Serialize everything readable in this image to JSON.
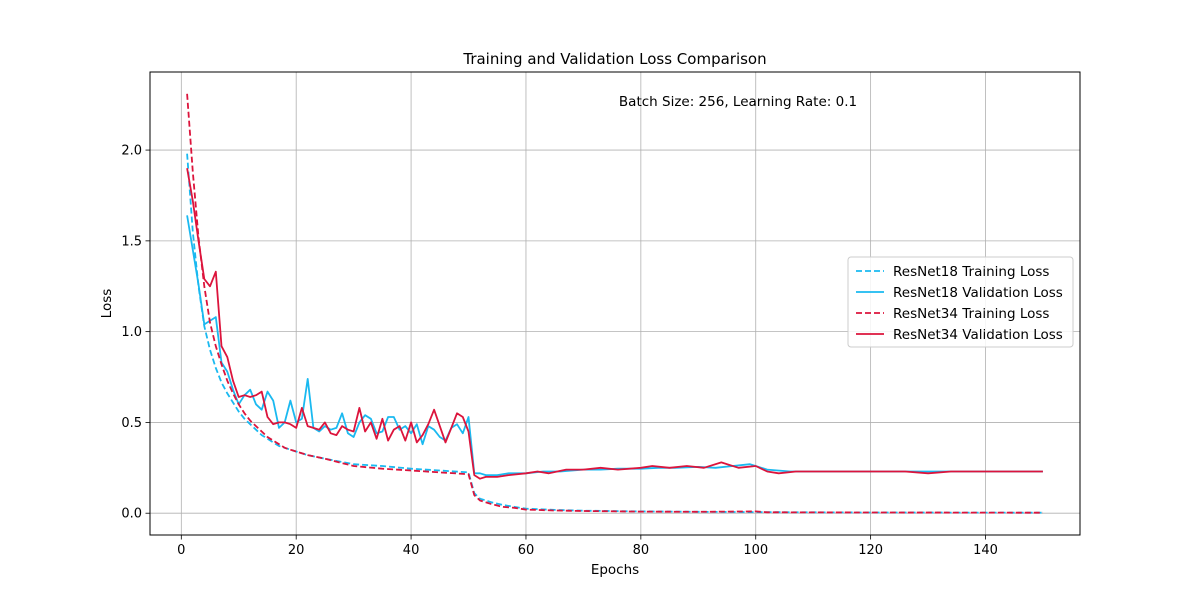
{
  "chart_data": {
    "type": "line",
    "title": "Training and Validation Loss Comparison",
    "annotation": "Batch Size: 256, Learning Rate: 0.1",
    "xlabel": "Epochs",
    "ylabel": "Loss",
    "xlim": [
      -5.45,
      156.45
    ],
    "ylim": [
      -0.12,
      2.43
    ],
    "xticks": [
      0,
      20,
      40,
      60,
      80,
      100,
      120,
      140
    ],
    "yticks": [
      0.0,
      0.5,
      1.0,
      1.5,
      2.0
    ],
    "ytick_labels": [
      "0.0",
      "0.5",
      "1.0",
      "1.5",
      "2.0"
    ],
    "grid": true,
    "legend_position": "center-right",
    "series": [
      {
        "name": "ResNet18 Training Loss",
        "color": "#1AB9F0",
        "dash": true,
        "points": [
          [
            1,
            1.98
          ],
          [
            2,
            1.55
          ],
          [
            3,
            1.25
          ],
          [
            4,
            1.03
          ],
          [
            5,
            0.9
          ],
          [
            6,
            0.8
          ],
          [
            7,
            0.72
          ],
          [
            8,
            0.66
          ],
          [
            9,
            0.61
          ],
          [
            10,
            0.56
          ],
          [
            11,
            0.52
          ],
          [
            12,
            0.49
          ],
          [
            13,
            0.46
          ],
          [
            14,
            0.43
          ],
          [
            15,
            0.41
          ],
          [
            16,
            0.39
          ],
          [
            17,
            0.37
          ],
          [
            18,
            0.36
          ],
          [
            19,
            0.35
          ],
          [
            20,
            0.34
          ],
          [
            22,
            0.32
          ],
          [
            25,
            0.3
          ],
          [
            30,
            0.27
          ],
          [
            35,
            0.26
          ],
          [
            40,
            0.245
          ],
          [
            45,
            0.235
          ],
          [
            50,
            0.225
          ],
          [
            51,
            0.11
          ],
          [
            52,
            0.08
          ],
          [
            54,
            0.06
          ],
          [
            56,
            0.045
          ],
          [
            58,
            0.035
          ],
          [
            60,
            0.025
          ],
          [
            65,
            0.018
          ],
          [
            70,
            0.014
          ],
          [
            80,
            0.01
          ],
          [
            90,
            0.008
          ],
          [
            100,
            0.006
          ],
          [
            120,
            0.004
          ],
          [
            150,
            0.003
          ]
        ]
      },
      {
        "name": "ResNet18 Validation Loss",
        "color": "#1AB9F0",
        "dash": false,
        "points": [
          [
            1,
            1.64
          ],
          [
            2,
            1.45
          ],
          [
            3,
            1.26
          ],
          [
            4,
            1.04
          ],
          [
            5,
            1.06
          ],
          [
            6,
            1.08
          ],
          [
            7,
            0.83
          ],
          [
            8,
            0.78
          ],
          [
            9,
            0.68
          ],
          [
            10,
            0.6
          ],
          [
            11,
            0.65
          ],
          [
            12,
            0.68
          ],
          [
            13,
            0.6
          ],
          [
            14,
            0.57
          ],
          [
            15,
            0.67
          ],
          [
            16,
            0.62
          ],
          [
            17,
            0.47
          ],
          [
            18,
            0.5
          ],
          [
            19,
            0.62
          ],
          [
            20,
            0.5
          ],
          [
            21,
            0.52
          ],
          [
            22,
            0.74
          ],
          [
            23,
            0.47
          ],
          [
            24,
            0.45
          ],
          [
            25,
            0.48
          ],
          [
            26,
            0.46
          ],
          [
            27,
            0.47
          ],
          [
            28,
            0.55
          ],
          [
            29,
            0.44
          ],
          [
            30,
            0.42
          ],
          [
            31,
            0.5
          ],
          [
            32,
            0.54
          ],
          [
            33,
            0.52
          ],
          [
            34,
            0.44
          ],
          [
            35,
            0.45
          ],
          [
            36,
            0.53
          ],
          [
            37,
            0.53
          ],
          [
            38,
            0.46
          ],
          [
            39,
            0.48
          ],
          [
            40,
            0.44
          ],
          [
            41,
            0.49
          ],
          [
            42,
            0.38
          ],
          [
            43,
            0.48
          ],
          [
            44,
            0.46
          ],
          [
            45,
            0.42
          ],
          [
            46,
            0.4
          ],
          [
            47,
            0.47
          ],
          [
            48,
            0.49
          ],
          [
            49,
            0.44
          ],
          [
            50,
            0.53
          ],
          [
            51,
            0.22
          ],
          [
            52,
            0.22
          ],
          [
            53,
            0.21
          ],
          [
            55,
            0.21
          ],
          [
            57,
            0.22
          ],
          [
            60,
            0.22
          ],
          [
            63,
            0.23
          ],
          [
            66,
            0.23
          ],
          [
            70,
            0.24
          ],
          [
            73,
            0.24
          ],
          [
            76,
            0.245
          ],
          [
            80,
            0.245
          ],
          [
            83,
            0.25
          ],
          [
            86,
            0.25
          ],
          [
            90,
            0.255
          ],
          [
            93,
            0.25
          ],
          [
            96,
            0.26
          ],
          [
            99,
            0.27
          ],
          [
            102,
            0.24
          ],
          [
            106,
            0.23
          ],
          [
            110,
            0.23
          ],
          [
            114,
            0.23
          ],
          [
            118,
            0.23
          ],
          [
            122,
            0.23
          ],
          [
            126,
            0.23
          ],
          [
            130,
            0.23
          ],
          [
            134,
            0.23
          ],
          [
            138,
            0.23
          ],
          [
            142,
            0.23
          ],
          [
            146,
            0.23
          ],
          [
            150,
            0.23
          ]
        ]
      },
      {
        "name": "ResNet34 Training Loss",
        "color": "#DC143C",
        "dash": true,
        "points": [
          [
            1,
            2.31
          ],
          [
            2,
            1.88
          ],
          [
            3,
            1.52
          ],
          [
            4,
            1.25
          ],
          [
            5,
            1.05
          ],
          [
            6,
            0.92
          ],
          [
            7,
            0.82
          ],
          [
            8,
            0.73
          ],
          [
            9,
            0.66
          ],
          [
            10,
            0.6
          ],
          [
            11,
            0.55
          ],
          [
            12,
            0.51
          ],
          [
            13,
            0.48
          ],
          [
            14,
            0.45
          ],
          [
            15,
            0.42
          ],
          [
            16,
            0.4
          ],
          [
            17,
            0.38
          ],
          [
            18,
            0.36
          ],
          [
            19,
            0.35
          ],
          [
            20,
            0.34
          ],
          [
            22,
            0.32
          ],
          [
            25,
            0.3
          ],
          [
            30,
            0.26
          ],
          [
            35,
            0.245
          ],
          [
            40,
            0.235
          ],
          [
            45,
            0.225
          ],
          [
            50,
            0.215
          ],
          [
            51,
            0.1
          ],
          [
            52,
            0.07
          ],
          [
            54,
            0.05
          ],
          [
            56,
            0.035
          ],
          [
            58,
            0.03
          ],
          [
            60,
            0.02
          ],
          [
            65,
            0.015
          ],
          [
            70,
            0.012
          ],
          [
            80,
            0.009
          ],
          [
            90,
            0.008
          ],
          [
            100,
            0.01
          ],
          [
            102,
            0.005
          ],
          [
            120,
            0.004
          ],
          [
            150,
            0.003
          ]
        ]
      },
      {
        "name": "ResNet34 Validation Loss",
        "color": "#DC143C",
        "dash": false,
        "points": [
          [
            1,
            1.9
          ],
          [
            2,
            1.72
          ],
          [
            3,
            1.5
          ],
          [
            4,
            1.29
          ],
          [
            5,
            1.25
          ],
          [
            6,
            1.33
          ],
          [
            7,
            0.92
          ],
          [
            8,
            0.86
          ],
          [
            9,
            0.73
          ],
          [
            10,
            0.64
          ],
          [
            11,
            0.65
          ],
          [
            12,
            0.64
          ],
          [
            13,
            0.65
          ],
          [
            14,
            0.67
          ],
          [
            15,
            0.53
          ],
          [
            16,
            0.49
          ],
          [
            17,
            0.5
          ],
          [
            18,
            0.5
          ],
          [
            19,
            0.49
          ],
          [
            20,
            0.47
          ],
          [
            21,
            0.58
          ],
          [
            22,
            0.48
          ],
          [
            23,
            0.47
          ],
          [
            24,
            0.46
          ],
          [
            25,
            0.5
          ],
          [
            26,
            0.44
          ],
          [
            27,
            0.43
          ],
          [
            28,
            0.48
          ],
          [
            29,
            0.46
          ],
          [
            30,
            0.45
          ],
          [
            31,
            0.58
          ],
          [
            32,
            0.45
          ],
          [
            33,
            0.5
          ],
          [
            34,
            0.41
          ],
          [
            35,
            0.52
          ],
          [
            36,
            0.4
          ],
          [
            37,
            0.46
          ],
          [
            38,
            0.48
          ],
          [
            39,
            0.4
          ],
          [
            40,
            0.5
          ],
          [
            41,
            0.39
          ],
          [
            42,
            0.43
          ],
          [
            43,
            0.49
          ],
          [
            44,
            0.57
          ],
          [
            45,
            0.48
          ],
          [
            46,
            0.39
          ],
          [
            47,
            0.47
          ],
          [
            48,
            0.55
          ],
          [
            49,
            0.53
          ],
          [
            50,
            0.45
          ],
          [
            51,
            0.21
          ],
          [
            52,
            0.19
          ],
          [
            53,
            0.2
          ],
          [
            55,
            0.2
          ],
          [
            57,
            0.21
          ],
          [
            60,
            0.22
          ],
          [
            62,
            0.23
          ],
          [
            64,
            0.22
          ],
          [
            67,
            0.24
          ],
          [
            70,
            0.24
          ],
          [
            73,
            0.25
          ],
          [
            76,
            0.24
          ],
          [
            80,
            0.25
          ],
          [
            82,
            0.26
          ],
          [
            85,
            0.25
          ],
          [
            88,
            0.26
          ],
          [
            91,
            0.25
          ],
          [
            94,
            0.28
          ],
          [
            97,
            0.25
          ],
          [
            100,
            0.26
          ],
          [
            102,
            0.23
          ],
          [
            104,
            0.22
          ],
          [
            107,
            0.23
          ],
          [
            110,
            0.23
          ],
          [
            114,
            0.23
          ],
          [
            118,
            0.23
          ],
          [
            122,
            0.23
          ],
          [
            126,
            0.23
          ],
          [
            130,
            0.22
          ],
          [
            134,
            0.23
          ],
          [
            138,
            0.23
          ],
          [
            142,
            0.23
          ],
          [
            146,
            0.23
          ],
          [
            150,
            0.23
          ]
        ]
      }
    ]
  }
}
